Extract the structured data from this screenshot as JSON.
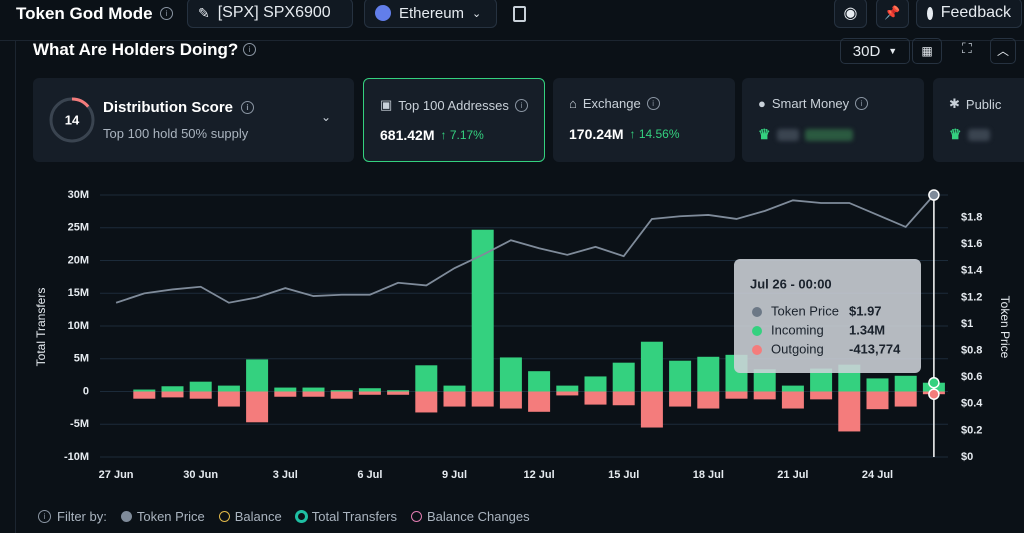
{
  "header": {
    "title": "Token God Mode",
    "token": "[SPX] SPX6900",
    "chain": "Ethereum",
    "feedback": "Feedback"
  },
  "section": {
    "title": "What Are Holders Doing?",
    "period": "30D"
  },
  "cards": {
    "distribution": {
      "title": "Distribution Score",
      "score": 14,
      "subtitle": "Top 100 hold 50% supply"
    },
    "top100": {
      "title": "Top 100 Addresses",
      "value": "681.42M",
      "change": "7.17%"
    },
    "exchange": {
      "title": "Exchange",
      "value": "170.24M",
      "change": "14.56%"
    },
    "smart_money": {
      "title": "Smart Money"
    },
    "public": {
      "title": "Public"
    }
  },
  "chart_data": {
    "type": "bar",
    "y_label": "Total Transfers",
    "y2_label": "Token Price",
    "categories": [
      "27 Jun",
      null,
      null,
      "30 Jun",
      null,
      null,
      "3 Jul",
      null,
      null,
      "6 Jul",
      null,
      null,
      "9 Jul",
      null,
      null,
      "12 Jul",
      null,
      null,
      "15 Jul",
      null,
      null,
      "18 Jul",
      null,
      null,
      "21 Jul",
      null,
      null,
      "24 Jul",
      null,
      null
    ],
    "series": [
      {
        "name": "Token Price",
        "type": "line",
        "axis": "y2",
        "color": "#7f8b9a",
        "values": [
          1.16,
          1.23,
          1.26,
          1.28,
          1.16,
          1.2,
          1.27,
          1.21,
          1.22,
          1.22,
          1.31,
          1.29,
          1.42,
          1.52,
          1.63,
          1.57,
          1.52,
          1.58,
          1.51,
          1.79,
          1.81,
          1.82,
          1.79,
          1.85,
          1.93,
          1.91,
          1.91,
          1.82,
          1.73,
          1.97
        ]
      },
      {
        "name": "Incoming",
        "type": "bar",
        "color": "#34d17f",
        "values": [
          0,
          300000,
          800000,
          1500000,
          900000,
          4900000,
          600000,
          600000,
          200000,
          500000,
          200000,
          4000000,
          900000,
          24700000,
          5200000,
          3100000,
          900000,
          2300000,
          4400000,
          7600000,
          4700000,
          5300000,
          5600000,
          3400000,
          900000,
          3500000,
          4100000,
          2000000,
          2400000,
          1340000
        ]
      },
      {
        "name": "Outgoing",
        "type": "bar",
        "color": "#f47c7c",
        "values": [
          0,
          -1100000,
          -900000,
          -1100000,
          -2300000,
          -4700000,
          -800000,
          -800000,
          -1100000,
          -500000,
          -500000,
          -3200000,
          -2300000,
          -2300000,
          -2600000,
          -3100000,
          -600000,
          -2000000,
          -2100000,
          -5500000,
          -2300000,
          -2600000,
          -1100000,
          -1200000,
          -2600000,
          -1200000,
          -6100000,
          -2700000,
          -2300000,
          -413774
        ]
      }
    ],
    "ylim": [
      -10000000,
      30000000
    ],
    "yticks": [
      {
        "value": 30000000,
        "label": "30M"
      },
      {
        "value": 25000000,
        "label": "25M"
      },
      {
        "value": 20000000,
        "label": "20M"
      },
      {
        "value": 15000000,
        "label": "15M"
      },
      {
        "value": 10000000,
        "label": "10M"
      },
      {
        "value": 5000000,
        "label": "5M"
      },
      0,
      {
        "value": -5000000,
        "label": "-5M"
      },
      {
        "value": -10000000,
        "label": "-10M"
      }
    ],
    "y2lim": [
      0,
      1.97
    ],
    "y2ticks": [
      {
        "value": 1.8,
        "label": "$1.8"
      },
      {
        "value": 1.6,
        "label": "$1.6"
      },
      {
        "value": 1.4,
        "label": "$1.4"
      },
      {
        "value": 1.2,
        "label": "$1.2"
      },
      {
        "value": 1,
        "label": "$1"
      },
      {
        "value": 0.8,
        "label": "$0.8"
      },
      {
        "value": 0.6,
        "label": "$0.6"
      },
      {
        "value": 0.4,
        "label": "$0.4"
      },
      {
        "value": 0.2,
        "label": "$0.2"
      },
      {
        "value": 0,
        "label": "$0"
      }
    ],
    "grid": true,
    "tooltip": {
      "title": "Jul 26 - 00:00",
      "values": [
        "$1.97",
        "1.34M",
        "-413,774"
      ]
    }
  },
  "filters": {
    "label": "Filter by:",
    "items": [
      "Token Price",
      "Balance",
      "Total Transfers",
      "Balance Changes"
    ]
  }
}
